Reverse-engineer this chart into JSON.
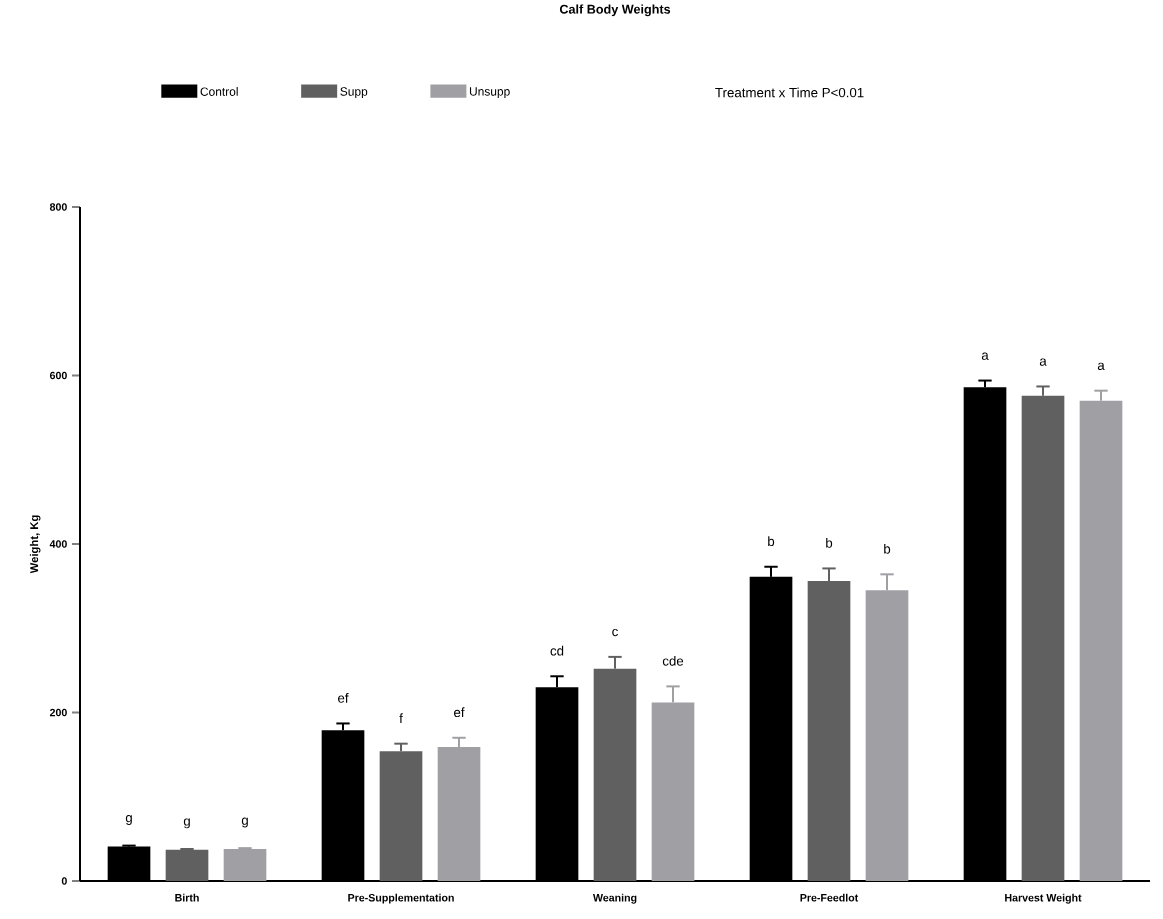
{
  "chart_data": {
    "type": "bar",
    "title": "Calf Body Weights",
    "ylabel": "Weight, Kg",
    "categories": [
      "Birth",
      "Pre-Supplementation",
      "Weaning",
      "Pre-Feedlot",
      "Harvest Weight"
    ],
    "series": [
      {
        "name": "Control",
        "color": "#000000",
        "values": [
          41,
          179,
          230,
          361,
          586
        ],
        "errors": [
          1,
          8,
          13,
          12,
          8
        ],
        "value_labels": [
          "g",
          "ef",
          "cd",
          "b",
          "a"
        ]
      },
      {
        "name": "Supp",
        "color": "#606060",
        "values": [
          37,
          154,
          252,
          356,
          576
        ],
        "errors": [
          1,
          9,
          14,
          15,
          11
        ],
        "value_labels": [
          "g",
          "f",
          "c",
          "b",
          "a"
        ]
      },
      {
        "name": "Unsupp",
        "color": "#a0a0a4",
        "values": [
          38,
          159,
          212,
          345,
          570
        ],
        "errors": [
          1,
          11,
          19,
          19,
          12
        ],
        "value_labels": [
          "g",
          "ef",
          "cde",
          "b",
          "a"
        ]
      }
    ],
    "ylim": [
      0,
      800
    ],
    "yticks": [
      0,
      200,
      400,
      600,
      800
    ],
    "legend": "top",
    "annotations": [
      "Treatment x Time P<0.01"
    ]
  }
}
